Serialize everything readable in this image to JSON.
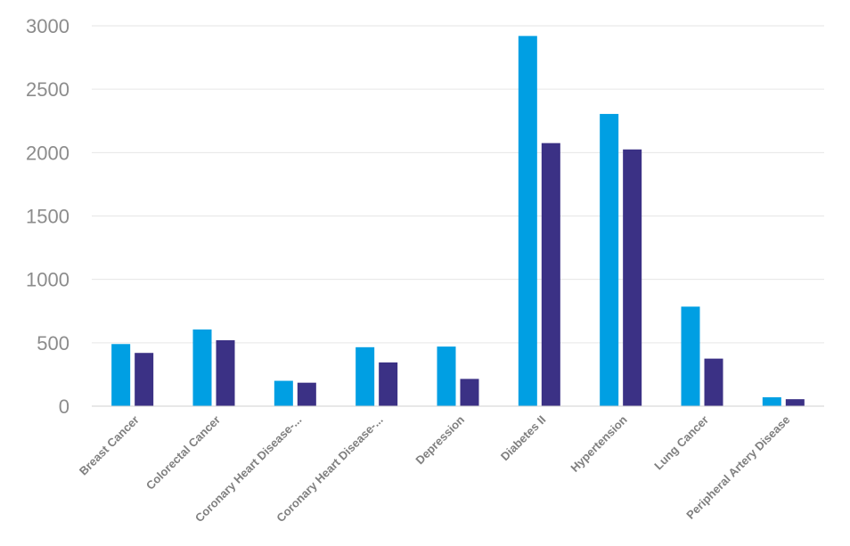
{
  "chart_data": {
    "type": "bar",
    "title": "",
    "xlabel": "",
    "ylabel": "",
    "ylim": [
      0,
      3000
    ],
    "yticks": [
      0,
      500,
      1000,
      1500,
      2000,
      2500,
      3000
    ],
    "grid": true,
    "legend": "none",
    "categories": [
      "Breast Cancer",
      "Colorectal Cancer",
      "Coronary Heart Disease-...",
      "Coronary Heart Disease-...",
      "Depression",
      "Diabetes II",
      "Hypertension",
      "Lung Cancer",
      "Peripheral Artery Disease"
    ],
    "series": [
      {
        "color": "#009fe3",
        "values": [
          490,
          605,
          200,
          465,
          470,
          2920,
          2305,
          785,
          70
        ]
      },
      {
        "color": "#3b3185",
        "values": [
          420,
          520,
          185,
          345,
          215,
          2075,
          2025,
          375,
          55
        ]
      }
    ]
  }
}
